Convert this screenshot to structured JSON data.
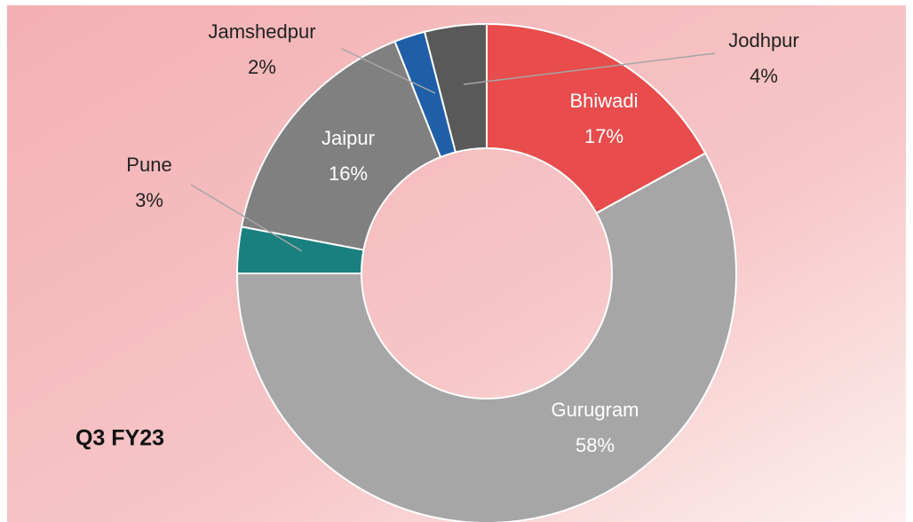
{
  "chart_data": {
    "type": "donut",
    "title": "Q3 FY23",
    "categories": [
      "Bhiwadi",
      "Gurugram",
      "Pune",
      "Jaipur",
      "Jamshedpur",
      "Jodhpur"
    ],
    "values": [
      17,
      58,
      3,
      16,
      2,
      4
    ],
    "value_labels": [
      "17%",
      "58%",
      "3%",
      "16%",
      "2%",
      "4%"
    ],
    "colors": [
      "#e84c4c",
      "#a6a6a6",
      "#1a7f7f",
      "#808080",
      "#1f5fa8",
      "#595959"
    ]
  }
}
